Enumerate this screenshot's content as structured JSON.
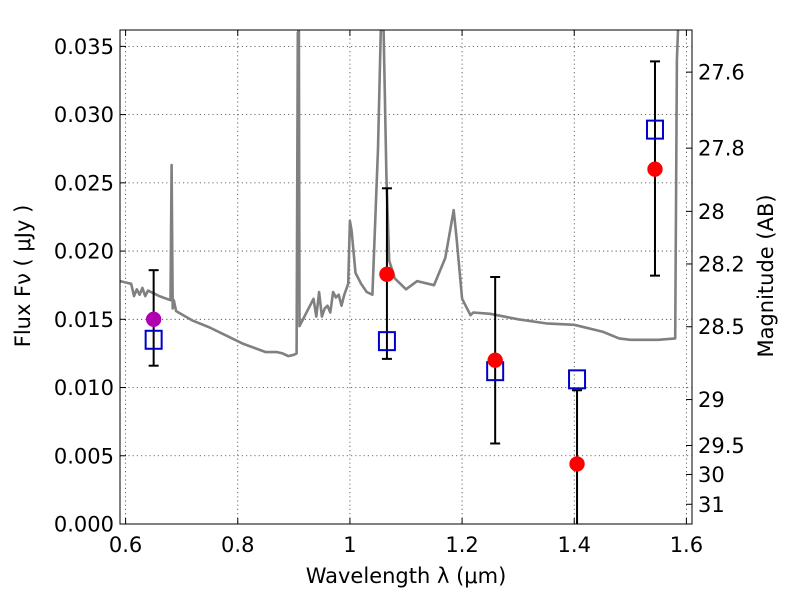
{
  "chart_data": {
    "type": "scatter",
    "xlabel": "Wavelength  λ (μm)",
    "ylabel": "Flux  Fν  ( μJy )",
    "ylabel_right": "Magnitude (AB)",
    "xlim": [
      0.59,
      1.61
    ],
    "ylim": [
      0.0,
      0.0362
    ],
    "x_ticks": [
      0.6,
      0.8,
      1.0,
      1.2,
      1.4,
      1.6
    ],
    "x_tick_labels": [
      "0.6",
      "0.8",
      "1",
      "1.2",
      "1.4",
      "1.6"
    ],
    "y_ticks": [
      0.0,
      0.005,
      0.01,
      0.015,
      0.02,
      0.025,
      0.03,
      0.035
    ],
    "y_tick_labels": [
      "0.000",
      "0.005",
      "0.010",
      "0.015",
      "0.020",
      "0.025",
      "0.030",
      "0.035"
    ],
    "mag_ticks": [
      27.6,
      27.8,
      28,
      28.2,
      28.5,
      29,
      29.5,
      30,
      31
    ],
    "mag_tick_labels": [
      "27.6",
      "27.8",
      "28",
      "28.2",
      "28.5",
      "29",
      "29.5",
      "30",
      "31"
    ],
    "grid": true,
    "colors": {
      "model_line": "#808080",
      "observed": "#ff0000",
      "observed_first": "#b000b0",
      "model_box": "#0000cc",
      "errorbar": "#000000"
    },
    "series": [
      {
        "name": "model spectrum",
        "kind": "line",
        "x": [
          0.59,
          0.61,
          0.615,
          0.62,
          0.625,
          0.63,
          0.635,
          0.64,
          0.66,
          0.68,
          0.682,
          0.684,
          0.686,
          0.69,
          0.72,
          0.75,
          0.78,
          0.81,
          0.83,
          0.85,
          0.87,
          0.88,
          0.89,
          0.9,
          0.905,
          0.907,
          0.909,
          0.91,
          0.92,
          0.93,
          0.935,
          0.94,
          0.945,
          0.95,
          0.955,
          0.96,
          0.965,
          0.97,
          0.975,
          0.98,
          0.985,
          0.99,
          0.997,
          1.0,
          1.003,
          1.01,
          1.02,
          1.03,
          1.04,
          1.05,
          1.055,
          1.06,
          1.065,
          1.07,
          1.08,
          1.09,
          1.1,
          1.12,
          1.15,
          1.17,
          1.185,
          1.19,
          1.2,
          1.215,
          1.22,
          1.25,
          1.3,
          1.35,
          1.4,
          1.45,
          1.48,
          1.5,
          1.52,
          1.55,
          1.58,
          1.583,
          1.585,
          1.586
        ],
        "y": [
          0.0178,
          0.0176,
          0.0167,
          0.0172,
          0.0168,
          0.0173,
          0.0167,
          0.0171,
          0.0167,
          0.0164,
          0.0263,
          0.0158,
          0.0164,
          0.0156,
          0.0149,
          0.0144,
          0.0138,
          0.0132,
          0.0129,
          0.0126,
          0.0126,
          0.0125,
          0.0123,
          0.0124,
          0.0125,
          0.036,
          0.0362,
          0.0145,
          0.0153,
          0.0161,
          0.0165,
          0.0152,
          0.017,
          0.0152,
          0.0158,
          0.016,
          0.0155,
          0.017,
          0.0166,
          0.0168,
          0.016,
          0.0168,
          0.0176,
          0.0222,
          0.0215,
          0.0184,
          0.0176,
          0.017,
          0.0168,
          0.0275,
          0.0362,
          0.0362,
          0.0255,
          0.0193,
          0.018,
          0.0176,
          0.0172,
          0.0178,
          0.0175,
          0.0195,
          0.023,
          0.021,
          0.0165,
          0.0153,
          0.0155,
          0.0154,
          0.015,
          0.0147,
          0.0146,
          0.0141,
          0.0136,
          0.0135,
          0.0135,
          0.0135,
          0.0136,
          0.034,
          0.0362,
          0.0362
        ]
      },
      {
        "name": "model photometry",
        "kind": "open-square",
        "x": [
          0.65,
          1.066,
          1.259,
          1.405,
          1.544
        ],
        "y": [
          0.0135,
          0.0134,
          0.0112,
          0.0106,
          0.0289
        ]
      },
      {
        "name": "observed photometry",
        "kind": "filled-circle-errorbar",
        "x": [
          0.65,
          1.066,
          1.259,
          1.405,
          1.544
        ],
        "y": [
          0.015,
          0.0183,
          0.012,
          0.0044,
          0.026
        ],
        "yerr_low": [
          0.0034,
          0.0062,
          0.0061,
          0.0044,
          0.0078
        ],
        "yerr_high": [
          0.0036,
          0.0063,
          0.0061,
          0.0054,
          0.0079
        ]
      }
    ]
  }
}
